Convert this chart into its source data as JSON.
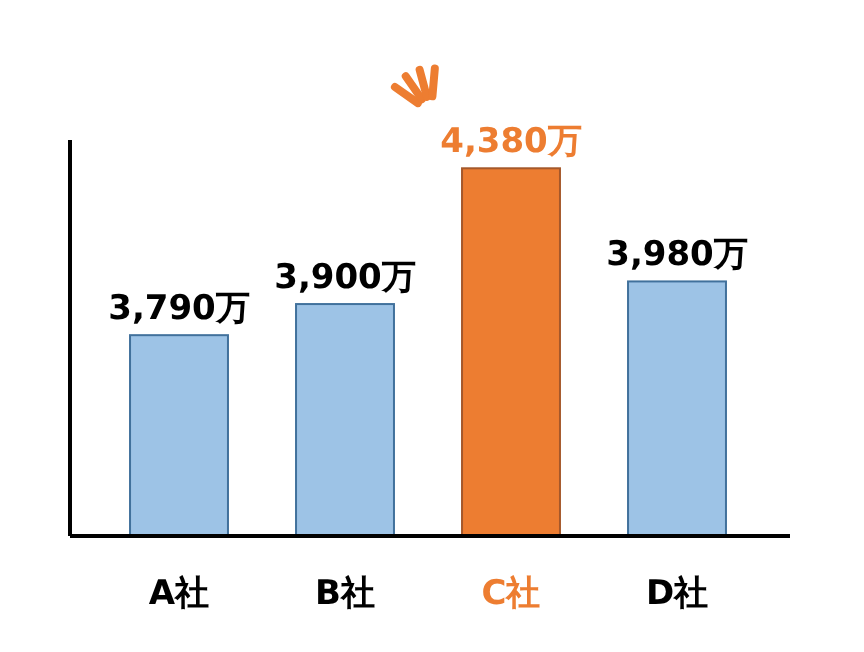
{
  "chart_data": {
    "type": "bar",
    "categories": [
      "A社",
      "B社",
      "C社",
      "D社"
    ],
    "values": [
      3790,
      3900,
      4380,
      3980
    ],
    "value_labels": [
      "3,790万",
      "3,900万",
      "4,380万",
      "3,980万"
    ],
    "color": "#9dc3e6",
    "colors": [
      "#9dc3e6",
      "#9dc3e6",
      "#ed7d31",
      "#9dc3e6"
    ],
    "ylim": [
      3080,
      4480
    ],
    "tick_labels": "x"
  }
}
